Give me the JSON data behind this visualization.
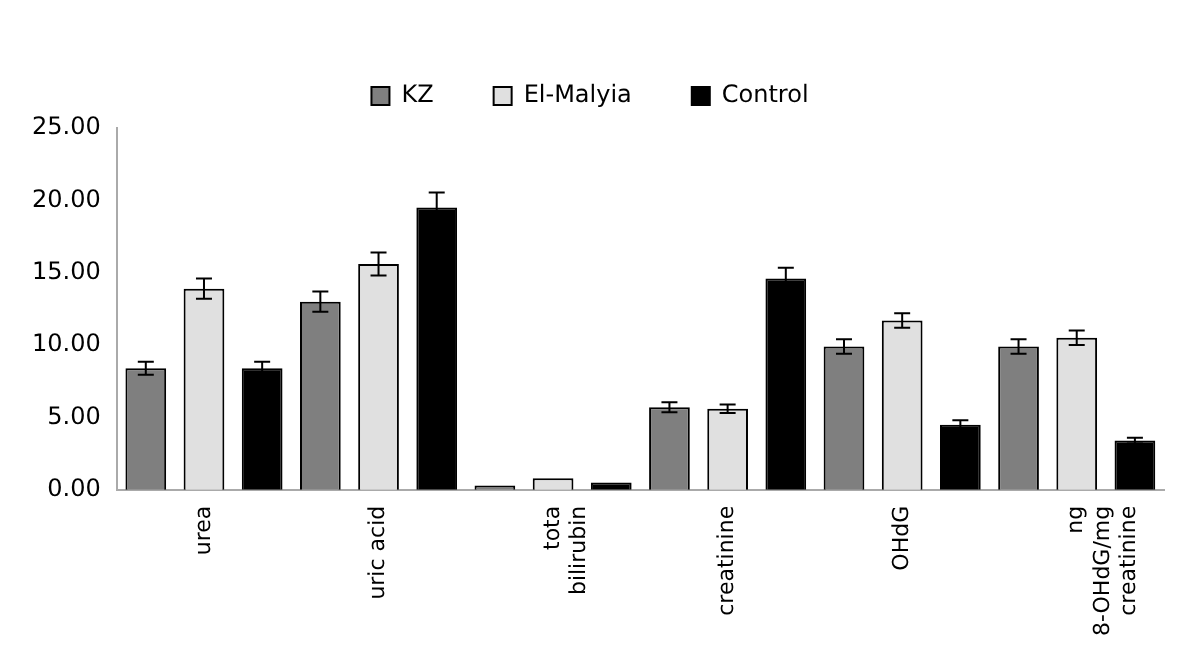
{
  "chart_data": {
    "type": "bar",
    "categories": [
      "urea",
      "uric acid",
      "tota bilirubin",
      "creatinine",
      "OHdG",
      "ng 8-OHdG/mg creatinine"
    ],
    "series": [
      {
        "name": "KZ",
        "color": "#7f7f7f",
        "values": [
          8.4,
          13.0,
          0.3,
          5.7,
          9.9,
          9.9
        ],
        "errors": [
          0.45,
          0.7,
          null,
          0.35,
          0.5,
          0.5
        ]
      },
      {
        "name": "El-Malyia",
        "color": "#e0e0e0",
        "values": [
          13.9,
          15.6,
          0.8,
          5.6,
          11.7,
          10.5
        ],
        "errors": [
          0.7,
          0.8,
          null,
          0.3,
          0.5,
          0.5
        ]
      },
      {
        "name": "Control",
        "color": "#000000",
        "values": [
          8.4,
          19.5,
          0.5,
          14.6,
          4.5,
          3.4
        ],
        "errors": [
          0.45,
          1.05,
          null,
          0.75,
          0.3,
          0.2
        ]
      }
    ],
    "ylim": [
      0,
      25
    ],
    "yticks": [
      {
        "value": 0,
        "label": "0.00"
      },
      {
        "value": 5,
        "label": "5.00"
      },
      {
        "value": 10,
        "label": "10.00"
      },
      {
        "value": 15,
        "label": "15.00"
      },
      {
        "value": 20,
        "label": "20.00"
      },
      {
        "value": 25,
        "label": "25.00"
      }
    ],
    "grid": false,
    "legend": "top"
  }
}
